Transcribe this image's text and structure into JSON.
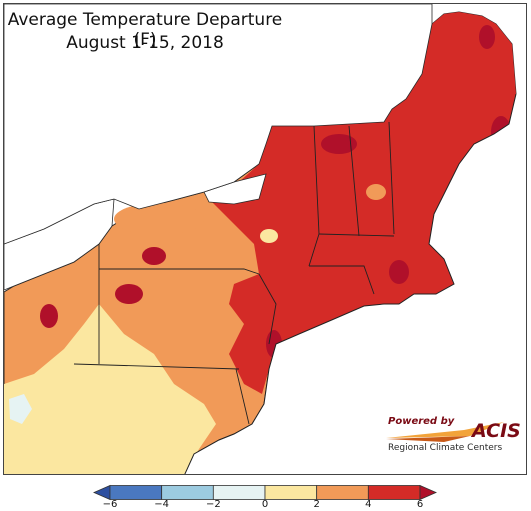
{
  "map": {
    "title_line1": "Average Temperature Departure (F)",
    "title_line2": "August 1-15, 2018"
  },
  "legend": {
    "ticks": [
      "−6",
      "−4",
      "−2",
      "0",
      "2",
      "4",
      "6"
    ],
    "bins": [
      {
        "range": "<-6",
        "color": "#2d4fa0"
      },
      {
        "range": "-6 to -4",
        "color": "#4a78c0"
      },
      {
        "range": "-4 to -2",
        "color": "#9ccbe0"
      },
      {
        "range": "-2 to 0",
        "color": "#e6f3f3"
      },
      {
        "range": "0 to 2",
        "color": "#fbe7a0"
      },
      {
        "range": "2 to 4",
        "color": "#f19a58"
      },
      {
        "range": "4 to 6",
        "color": "#d42b27"
      },
      {
        "range": ">6",
        "color": "#b0102a"
      }
    ]
  },
  "logo": {
    "powered_by": "Powered by",
    "name": "ACIS",
    "subtitle": "Regional Climate Centers"
  },
  "colors": {
    "lake": "#ffffff",
    "ocean": "#ffffff",
    "border": "#222222"
  }
}
